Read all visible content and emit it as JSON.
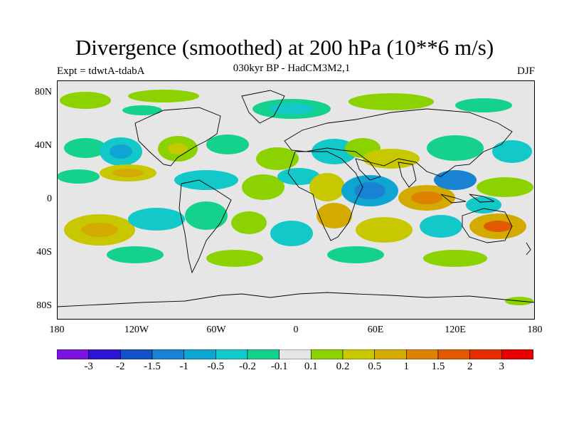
{
  "title": "Divergence (smoothed) at 200 hPa (10**6 m/s)",
  "experiment": "Expt = tdwtA-tdabA",
  "subtitle": "030kyr BP - HadCM3M2,1",
  "season": "DJF",
  "map": {
    "projection": "cylindrical equidistant",
    "lat_range": [
      -90,
      90
    ],
    "lon_range": [
      -180,
      180
    ],
    "lat_ticks": [
      {
        "value": 80,
        "label": "80N"
      },
      {
        "value": 40,
        "label": "40N"
      },
      {
        "value": 0,
        "label": "0"
      },
      {
        "value": -40,
        "label": "40S"
      },
      {
        "value": -80,
        "label": "80S"
      }
    ],
    "lon_ticks": [
      {
        "value": -180,
        "label": "180"
      },
      {
        "value": -120,
        "label": "120W"
      },
      {
        "value": -60,
        "label": "60W"
      },
      {
        "value": 0,
        "label": "0"
      },
      {
        "value": 60,
        "label": "60E"
      },
      {
        "value": 120,
        "label": "120E"
      },
      {
        "value": 180,
        "label": "180"
      }
    ]
  },
  "colorbar": {
    "colors": [
      "#7b14dc",
      "#2d14d2",
      "#1450c8",
      "#1a82d2",
      "#0fa5d2",
      "#12c8c8",
      "#14d28c",
      "#e6e6e6",
      "#8cd200",
      "#c8c800",
      "#d2aa00",
      "#dc8200",
      "#e15a00",
      "#e62d00",
      "#e60000"
    ],
    "labels": [
      "-3",
      "-2",
      "-1.5",
      "-1",
      "-0.5",
      "-0.2",
      "-0.1",
      "0.1",
      "0.2",
      "0.5",
      "1",
      "1.5",
      "2",
      "3"
    ]
  },
  "field_colors": {
    "background": "#e6e6e6",
    "land_outline": "#000000",
    "neg_weak": "#14d28c",
    "neg_mid": "#12c8c8",
    "neg_strong": "#0fa5d2",
    "neg_max": "#1a82d2",
    "pos_weak": "#8cd200",
    "pos_mid": "#c8c800",
    "pos_strong": "#d2aa00",
    "pos_max": "#dc8200",
    "pos_peak": "#e15a00"
  }
}
